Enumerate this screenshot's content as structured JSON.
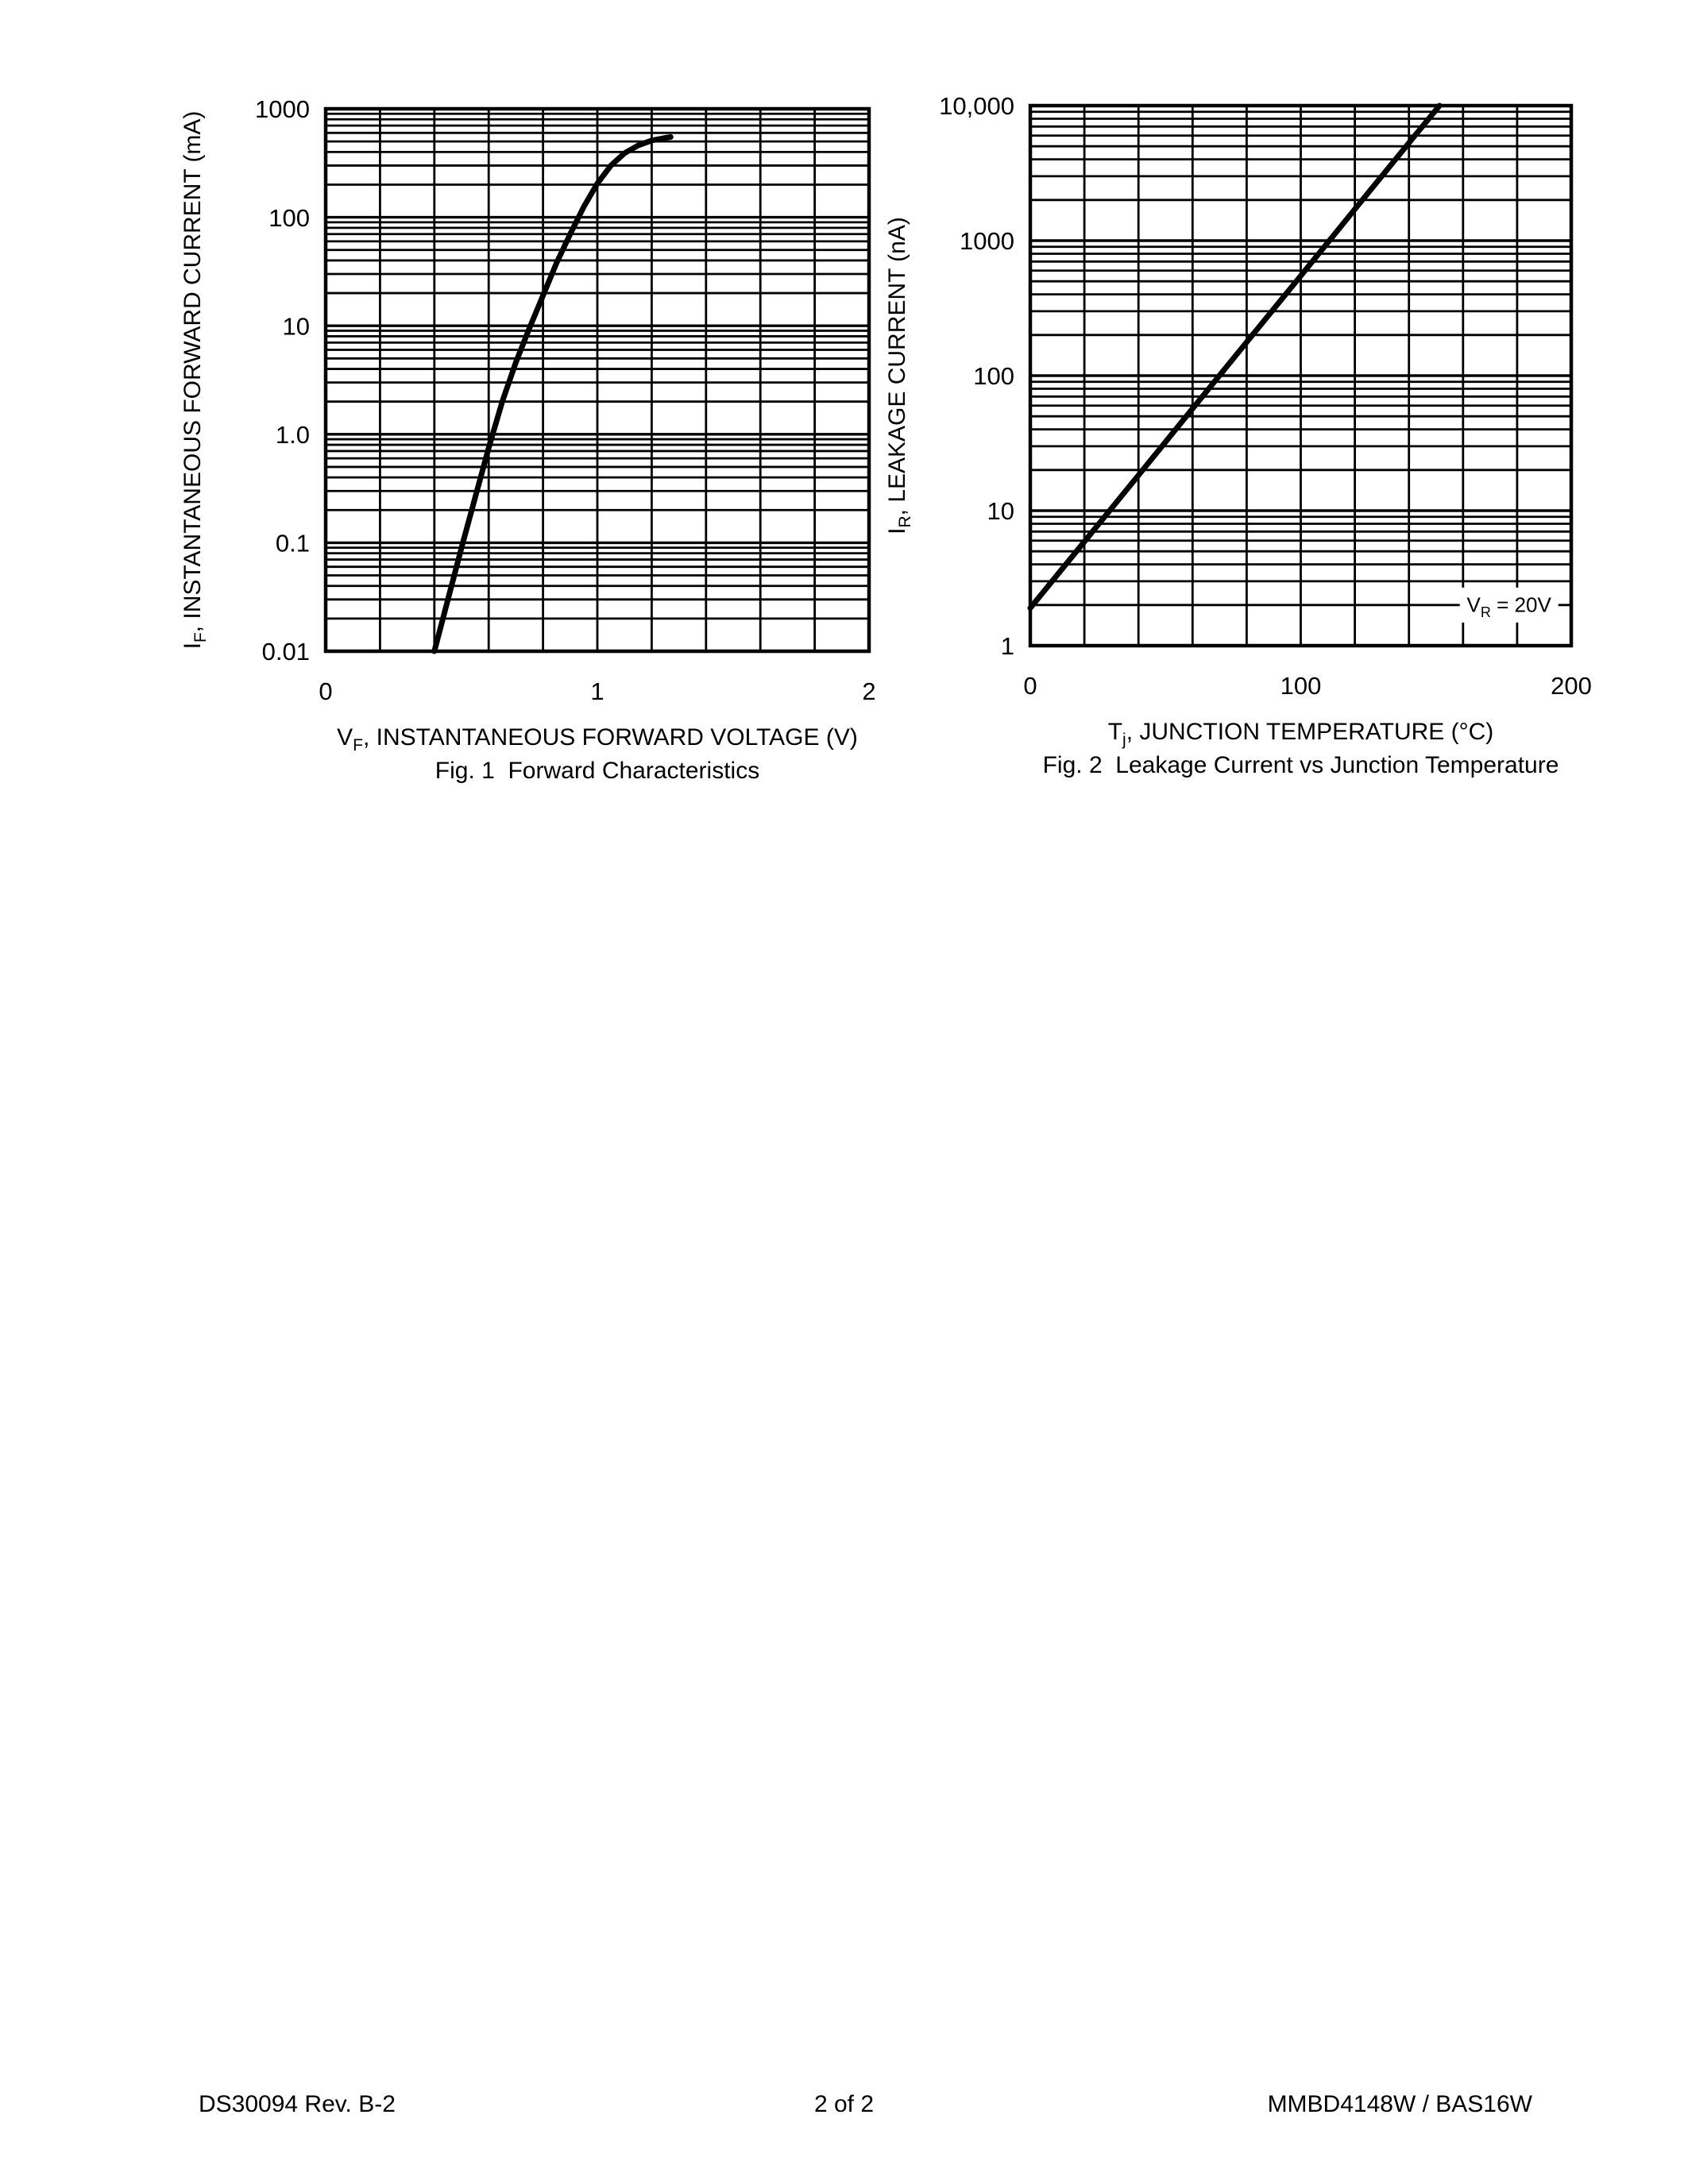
{
  "footer": {
    "left": "DS30094 Rev. B-2",
    "center": "2 of 2",
    "right": "MMBD4148W / BAS16W"
  },
  "chart_data": [
    {
      "type": "line",
      "title": "Fig. 1  Forward Characteristics",
      "xlabel": "VF, INSTANTANEOUS FORWARD VOLTAGE (V)",
      "ylabel": "IF, INSTANTANEOUS FORWARD CURRENT (mA)",
      "xlabel_parts": [
        {
          "t": "V"
        },
        {
          "t": "F",
          "sub": true
        },
        {
          "t": ", INSTANTANEOUS FORWARD VOLTAGE (V)"
        }
      ],
      "ylabel_parts": [
        {
          "t": "I"
        },
        {
          "t": "F",
          "sub": true
        },
        {
          "t": ", INSTANTANEOUS FORWARD CURRENT (mA)"
        }
      ],
      "x_axis": {
        "scale": "linear",
        "min": 0,
        "max": 2,
        "grid_step": 0.2,
        "ticks": [
          {
            "v": 0,
            "label": "0"
          },
          {
            "v": 1,
            "label": "1"
          },
          {
            "v": 2,
            "label": "2"
          }
        ]
      },
      "y_axis": {
        "scale": "log",
        "min": 0.01,
        "max": 1000,
        "ticks": [
          {
            "v": 1000,
            "label": "1000"
          },
          {
            "v": 100,
            "label": "100"
          },
          {
            "v": 10,
            "label": "10"
          },
          {
            "v": 1,
            "label": "1.0"
          },
          {
            "v": 0.1,
            "label": "0.1"
          },
          {
            "v": 0.01,
            "label": "0.01"
          }
        ]
      },
      "grid": true,
      "legend": "none",
      "series": [
        {
          "name": "instantaneous forward current",
          "x": [
            0.4,
            0.45,
            0.5,
            0.55,
            0.6,
            0.65,
            0.7,
            0.75,
            0.8,
            0.85,
            0.9,
            0.95,
            1.0,
            1.05,
            1.1,
            1.15,
            1.2,
            1.25,
            1.27
          ],
          "y": [
            0.01,
            0.03,
            0.09,
            0.26,
            0.75,
            2.0,
            4.6,
            9.5,
            19,
            38,
            70,
            125,
            205,
            300,
            390,
            460,
            510,
            540,
            550
          ]
        }
      ]
    },
    {
      "type": "line",
      "title": "Fig. 2  Leakage Current vs Junction Temperature",
      "xlabel": "Tj, JUNCTION TEMPERATURE (°C)",
      "ylabel": "IR, LEAKAGE CURRENT (nA)",
      "xlabel_parts": [
        {
          "t": "T"
        },
        {
          "t": "j",
          "sub": true
        },
        {
          "t": ", JUNCTION TEMPERATURE (°C)"
        }
      ],
      "ylabel_parts": [
        {
          "t": "I"
        },
        {
          "t": "R",
          "sub": true
        },
        {
          "t": ", LEAKAGE CURRENT (nA)"
        }
      ],
      "x_axis": {
        "scale": "linear",
        "min": 0,
        "max": 200,
        "grid_step": 20,
        "ticks": [
          {
            "v": 0,
            "label": "0"
          },
          {
            "v": 100,
            "label": "100"
          },
          {
            "v": 200,
            "label": "200"
          }
        ]
      },
      "y_axis": {
        "scale": "log",
        "min": 1,
        "max": 10000,
        "ticks": [
          {
            "v": 10000,
            "label": "10,000"
          },
          {
            "v": 1000,
            "label": "1000"
          },
          {
            "v": 100,
            "label": "100"
          },
          {
            "v": 10,
            "label": "10"
          },
          {
            "v": 1,
            "label": "1"
          }
        ]
      },
      "grid": true,
      "legend": "none",
      "annotation": {
        "text": "VR = 20V",
        "parts": [
          {
            "t": "V"
          },
          {
            "t": "R",
            "sub": true
          },
          {
            "t": " = 20V"
          }
        ],
        "x": 177,
        "y": 2
      },
      "series": [
        {
          "name": "leakage current at VR = 20V",
          "x": [
            0,
            20,
            40,
            60,
            80,
            100,
            120,
            140,
            151.3
          ],
          "y": [
            1.9,
            5.9,
            18.3,
            57,
            177,
            549,
            1710,
            5300,
            10000
          ]
        }
      ]
    }
  ]
}
